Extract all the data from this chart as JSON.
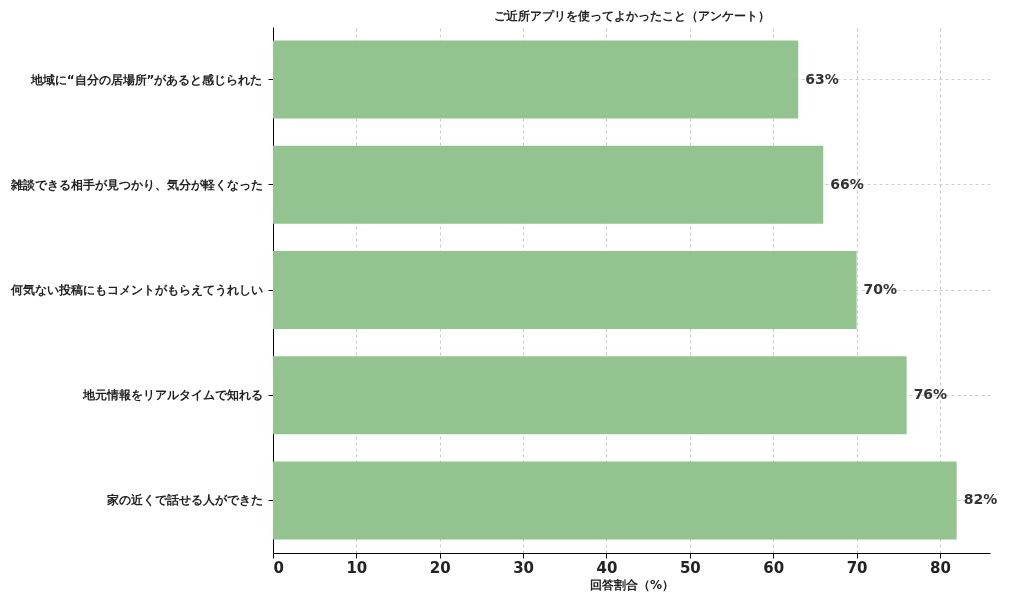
{
  "chart_data": {
    "type": "bar",
    "orientation": "horizontal",
    "title": "ご近所アプリを使ってよかったこと（アンケート）",
    "xlabel": "回答割合（%）",
    "categories": [
      "地域に“自分の居場所”があると感じられた",
      "雑談できる相手が見つかり、気分が軽くなった",
      "何気ない投稿にもコメントがもらえてうれしい",
      "地元情報をリアルタイムで知れる",
      "家の近くで話せる人ができた"
    ],
    "values": [
      63,
      66,
      70,
      76,
      82
    ],
    "color": "#93c48f",
    "value_labels": [
      "63%",
      "66%",
      "70%",
      "76%",
      "82%"
    ],
    "xlim": [
      0,
      86
    ],
    "xticks": [
      0,
      10,
      20,
      30,
      40,
      50,
      60,
      70,
      80
    ],
    "grid": true
  }
}
